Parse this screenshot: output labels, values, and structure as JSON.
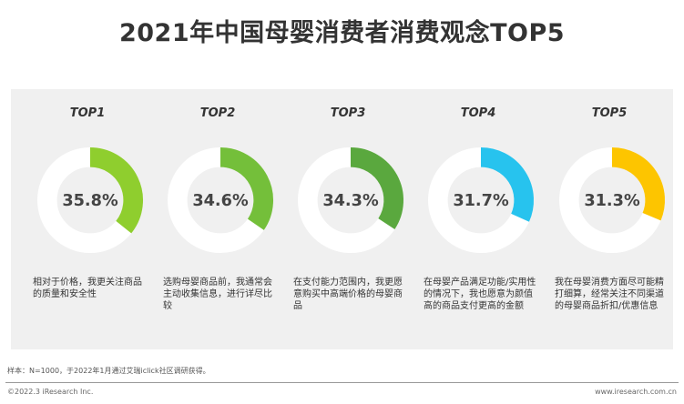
{
  "title": "2021年中国母婴消费者消费观念TOP5",
  "chart_data": {
    "type": "donut",
    "title": "2021年中国母婴消费者消费观念TOP5",
    "items": [
      {
        "rank": "TOP1",
        "value": 35.8,
        "label": "35.8%",
        "color": "#8fce2e",
        "desc": "相对于价格，我更关注商品的质量和安全性"
      },
      {
        "rank": "TOP2",
        "value": 34.6,
        "label": "34.6%",
        "color": "#74bf3a",
        "desc": "选购母婴商品前，我通常会主动收集信息，进行详尽比较"
      },
      {
        "rank": "TOP3",
        "value": 34.3,
        "label": "34.3%",
        "color": "#5aa83e",
        "desc": "在支付能力范围内，我更愿意购买中高端价格的母婴商品"
      },
      {
        "rank": "TOP4",
        "value": 31.7,
        "label": "31.7%",
        "color": "#27c3ee",
        "desc": "在母婴产品满足功能/实用性的情况下，我也愿意为颜值高的商品支付更高的金额"
      },
      {
        "rank": "TOP5",
        "value": 31.3,
        "label": "31.3%",
        "color": "#fdc500",
        "desc": "我在母婴消费方面尽可能精打细算，经常关注不同渠道的母婴商品折扣/优惠信息"
      }
    ],
    "track_color": "#ffffff"
  },
  "footnote": "样本：N=1000，于2022年1月通过艾瑞iclick社区调研获得。",
  "copyright": "©2022.3 iResearch Inc.",
  "website": "www.iresearch.com.cn"
}
